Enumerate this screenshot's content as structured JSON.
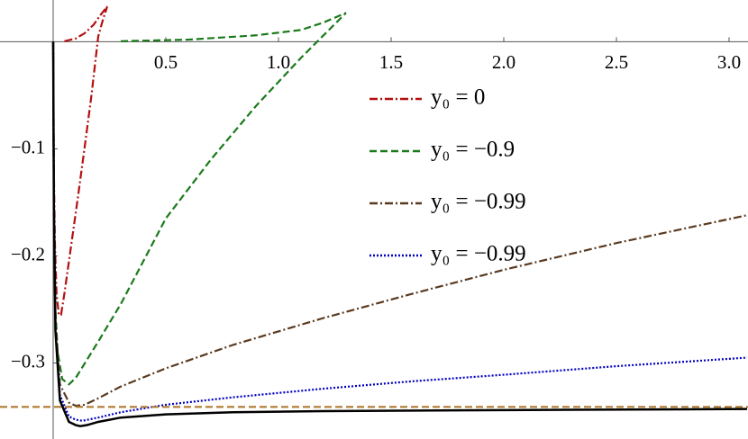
{
  "chart_data": {
    "type": "line",
    "xlim": [
      -0.236,
      3.084
    ],
    "ylim": [
      -0.371,
      0.039
    ],
    "xticks": [
      0.5,
      {
        "value": 1,
        "label": "1.0"
      },
      1.5,
      {
        "value": 2,
        "label": "2.0"
      },
      2.5,
      {
        "value": 3,
        "label": "3.0"
      }
    ],
    "yticks": [
      {
        "value": -0.1,
        "label": "−0.1"
      },
      {
        "value": -0.2,
        "label": "−0.2"
      },
      {
        "value": -0.3,
        "label": "−0.3"
      }
    ],
    "legend": "right",
    "series": [
      {
        "name": "y₀ = 0",
        "color": "#b31010",
        "dash": "dashdot",
        "x": [
          0,
          0.003,
          0.008,
          0.015,
          0.025,
          0.035,
          0.05,
          0.08,
          0.11,
          0.14,
          0.17,
          0.2,
          0.22,
          0.24,
          0,
          0.05,
          0.1,
          0.14,
          0.18,
          0.21,
          0.24
        ],
        "values": [
          0,
          -0.12,
          -0.19,
          -0.235,
          -0.255,
          -0.255,
          -0.235,
          -0.19,
          -0.145,
          -0.098,
          -0.05,
          0.005,
          0.02,
          0.033,
          null,
          0.0005,
          0.003,
          0.008,
          0.016,
          0.025,
          0.033
        ]
      },
      {
        "name": "y₀ = −0.9",
        "color": "#1a7a1a",
        "dash": "dashed",
        "x": [
          0,
          0.003,
          0.01,
          0.02,
          0.04,
          0.07,
          0.1,
          0.2,
          0.3,
          0.5,
          0.7,
          0.9,
          1.1,
          1.3,
          0,
          0.3,
          0.6,
          0.9,
          1.1,
          1.2,
          1.3
        ],
        "values": [
          0,
          -0.15,
          -0.25,
          -0.29,
          -0.315,
          -0.32,
          -0.314,
          -0.28,
          -0.245,
          -0.165,
          -0.11,
          -0.06,
          -0.015,
          0.027,
          null,
          0.0005,
          0.002,
          0.006,
          0.011,
          0.018,
          0.027
        ]
      },
      {
        "name": "y₀ = −0.99",
        "color": "#5a3a20",
        "dash": "dashdot",
        "x": [
          0,
          0.003,
          0.01,
          0.03,
          0.07,
          0.1,
          0.14,
          0.2,
          0.3,
          0.5,
          0.8,
          1.2,
          1.6,
          2.0,
          2.5,
          3.08
        ],
        "values": [
          0,
          -0.15,
          -0.26,
          -0.32,
          -0.337,
          -0.34,
          -0.339,
          -0.333,
          -0.322,
          -0.305,
          -0.283,
          -0.258,
          -0.235,
          -0.213,
          -0.188,
          -0.162
        ]
      },
      {
        "name": "y₀ = −0.99",
        "color": "#0000c0",
        "dash": "dotted",
        "x": [
          0,
          0.003,
          0.01,
          0.03,
          0.07,
          0.1,
          0.13,
          0.2,
          0.3,
          0.5,
          0.8,
          1.2,
          1.6,
          2.0,
          2.5,
          3.08
        ],
        "values": [
          0,
          -0.15,
          -0.27,
          -0.33,
          -0.35,
          -0.353,
          -0.354,
          -0.351,
          -0.346,
          -0.339,
          -0.332,
          -0.324,
          -0.317,
          -0.311,
          -0.303,
          -0.295
        ]
      },
      {
        "color": "#000000",
        "dash": "solid",
        "x": [
          0,
          0.003,
          0.01,
          0.03,
          0.07,
          0.1,
          0.12,
          0.15,
          0.2,
          0.3,
          0.5,
          0.8,
          1.2,
          2.0,
          3.08
        ],
        "values": [
          0,
          -0.15,
          -0.27,
          -0.335,
          -0.355,
          -0.358,
          -0.359,
          -0.358,
          -0.355,
          -0.351,
          -0.348,
          -0.346,
          -0.345,
          -0.344,
          -0.343
        ]
      },
      {
        "color": "#b07a30",
        "dash": "dashed",
        "x": [
          -0.236,
          3.084
        ],
        "values": [
          -0.341,
          -0.341
        ]
      }
    ]
  }
}
